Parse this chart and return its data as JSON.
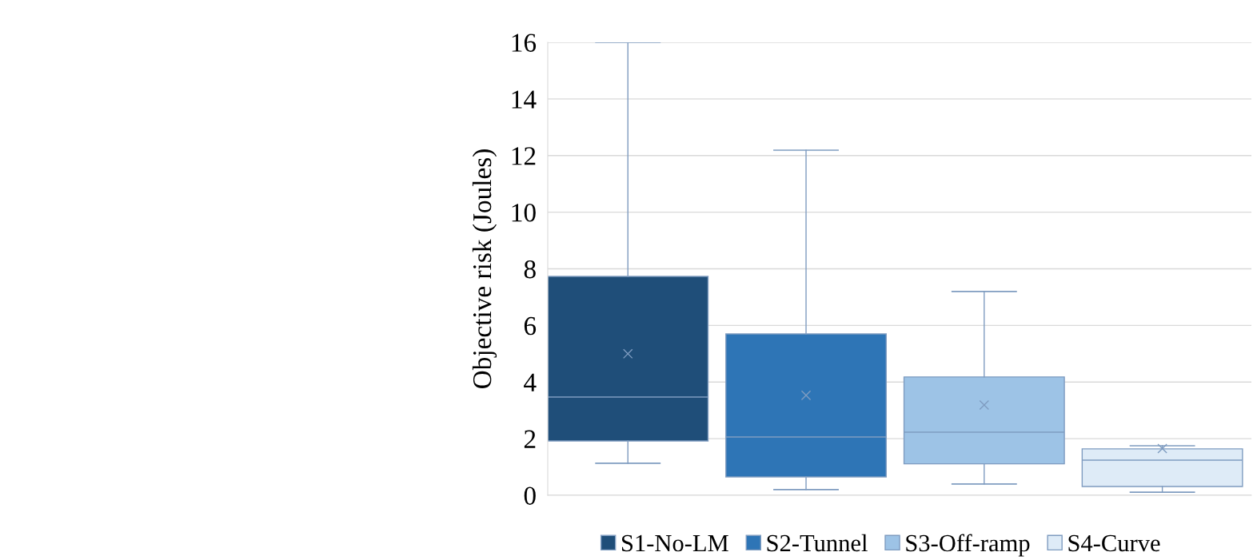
{
  "chart_data": {
    "type": "box",
    "ylabel": "Objective risk (Joules)",
    "categories": [
      null
    ],
    "ylim": [
      0,
      16
    ],
    "yticks": [
      0,
      2,
      4,
      6,
      8,
      10,
      12,
      14,
      16
    ],
    "grid": "y",
    "legend": "bottom",
    "marker": "cross",
    "series": [
      {
        "name": "S1-No-LM",
        "color": "#1f4e79",
        "boxes": [
          {
            "low": 1.13,
            "q1": 1.92,
            "median": 3.47,
            "q3": 7.73,
            "high": 16.0,
            "mean": 5.0
          }
        ]
      },
      {
        "name": "S2-Tunnel",
        "color": "#2e75b6",
        "boxes": [
          {
            "low": 0.2,
            "q1": 0.65,
            "median": 2.06,
            "q3": 5.7,
            "high": 12.19,
            "mean": 3.53
          }
        ]
      },
      {
        "name": "S3-Off-ramp",
        "color": "#9dc3e6",
        "boxes": [
          {
            "low": 0.4,
            "q1": 1.11,
            "median": 2.23,
            "q3": 4.18,
            "high": 7.2,
            "mean": 3.19
          }
        ]
      },
      {
        "name": "S4-Curve",
        "color": "#deebf7",
        "boxes": [
          {
            "low": 0.11,
            "q1": 0.31,
            "median": 1.24,
            "q3": 1.64,
            "high": 1.75,
            "mean": 1.65
          }
        ]
      }
    ]
  }
}
